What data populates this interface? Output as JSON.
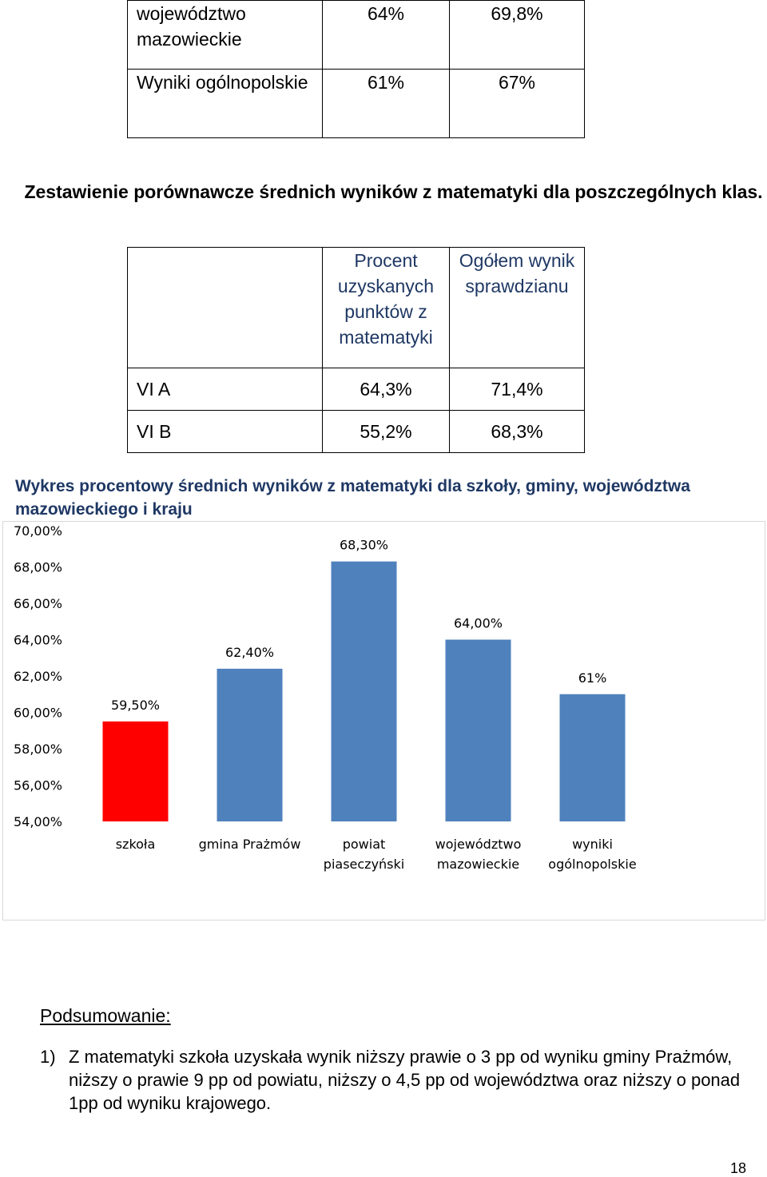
{
  "table_top": {
    "rows": [
      {
        "label": "województwo mazowieckie",
        "col1": "64%",
        "col2": "69,8%"
      },
      {
        "label": "Wyniki ogólnopolskie",
        "col1": "61%",
        "col2": "67%"
      }
    ]
  },
  "section_title": "Zestawienie  porównawcze średnich wyników z matematyki dla poszczególnych klas.",
  "table_classes": {
    "header": {
      "col1": "Procent uzyskanych punktów z matematyki",
      "col2": "Ogółem wynik sprawdzianu"
    },
    "rows": [
      {
        "label": "VI A",
        "col1": "64,3%",
        "col2": "71,4%"
      },
      {
        "label": "VI B",
        "col1": "55,2%",
        "col2": "68,3%"
      }
    ]
  },
  "chart_title": "Wykres procentowy średnich wyników z matematyki dla szkoły, gminy, województwa mazowieckiego i kraju",
  "chart_data": {
    "type": "bar",
    "title": "",
    "categories": [
      "szkoła",
      "gmina Prażmów",
      "powiat piaseczyński",
      "województwo mazowieckie",
      "wyniki ogólnopolskie"
    ],
    "values": [
      59.5,
      62.4,
      68.3,
      64.0,
      61.0
    ],
    "data_labels": [
      "59,50%",
      "62,40%",
      "68,30%",
      "64,00%",
      "61%"
    ],
    "colors": [
      "#ff0000",
      "#4f81bd",
      "#4f81bd",
      "#4f81bd",
      "#4f81bd"
    ],
    "ylim": [
      54,
      70
    ],
    "yticks": [
      "54,00%",
      "56,00%",
      "58,00%",
      "60,00%",
      "62,00%",
      "64,00%",
      "66,00%",
      "68,00%",
      "70,00%"
    ],
    "xlabel": "",
    "ylabel": "",
    "grid": false,
    "legend": "none"
  },
  "summary": {
    "heading": "Podsumowanie:",
    "item_number": "1)",
    "item_text": "Z matematyki szkoła uzyskała wynik niższy  prawie o 3 pp od wyniku gminy Prażmów, niższy  o prawie 9 pp od powiatu, niższy  o 4,5  pp od województwa oraz niższy o ponad 1pp od wyniku krajowego."
  },
  "page_number": "18"
}
